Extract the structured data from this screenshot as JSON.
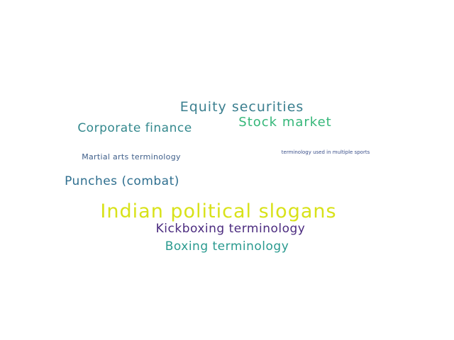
{
  "words": [
    {
      "text": "Equity securities",
      "color": "#3b7f8f"
    },
    {
      "text": "Stock market",
      "color": "#35b779"
    },
    {
      "text": "Corporate finance",
      "color": "#33888d"
    },
    {
      "text": "Martial arts terminology",
      "color": "#3f5f8a"
    },
    {
      "text": "terminology used in multiple sports",
      "color": "#3a4f8a"
    },
    {
      "text": "Punches (combat)",
      "color": "#2f6f8f"
    },
    {
      "text": "Indian political slogans",
      "color": "#d8e219"
    },
    {
      "text": "Kickboxing terminology",
      "color": "#4b2b7f"
    },
    {
      "text": "Boxing terminology",
      "color": "#2a9a8f"
    }
  ]
}
